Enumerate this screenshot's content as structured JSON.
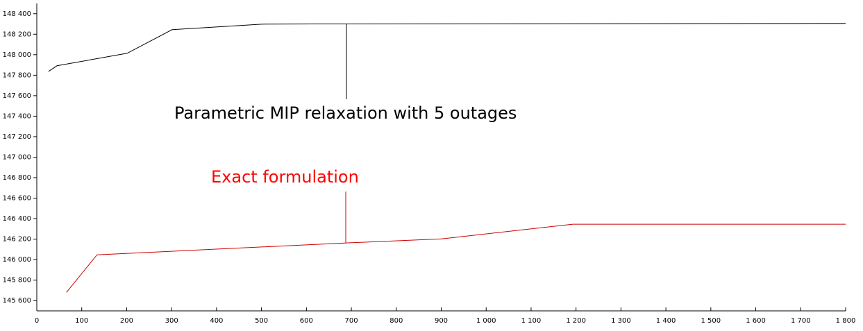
{
  "chart_data": {
    "type": "line",
    "annotations": [
      {
        "text": "Parametric MIP relaxation with 5 outages",
        "color": "#000000"
      },
      {
        "text": "Exact formulation",
        "color": "#ff0000"
      }
    ],
    "series": [
      {
        "color": "#000000",
        "x": [
          26,
          45,
          201,
          301,
          500,
          613,
          1800
        ],
        "values": [
          147837,
          147892,
          148014,
          148244,
          148298,
          148300,
          148305
        ]
      },
      {
        "color": "#cc0000",
        "x": [
          66,
          134,
          689,
          901,
          1193,
          1800
        ],
        "values": [
          145681,
          146047,
          146163,
          146203,
          146346,
          146346
        ]
      }
    ],
    "xlim": [
      0,
      1800
    ],
    "xticks": [
      0,
      100,
      200,
      300,
      400,
      500,
      600,
      700,
      800,
      900,
      {
        "value": 1000,
        "label": "1 000"
      },
      {
        "value": 1100,
        "label": "1 100"
      },
      {
        "value": 1200,
        "label": "1 200"
      },
      {
        "value": 1300,
        "label": "1 300"
      },
      {
        "value": 1400,
        "label": "1 400"
      },
      {
        "value": 1500,
        "label": "1 500"
      },
      {
        "value": 1600,
        "label": "1 600"
      },
      {
        "value": 1700,
        "label": "1 700"
      },
      {
        "value": 1800,
        "label": "1 800"
      }
    ],
    "ylim": [
      145500,
      148500
    ],
    "yticks": [
      {
        "value": 145600,
        "label": "145 600"
      },
      {
        "value": 145800,
        "label": "145 800"
      },
      {
        "value": 146000,
        "label": "146 000"
      },
      {
        "value": 146200,
        "label": "146 200"
      },
      {
        "value": 146400,
        "label": "146 400"
      },
      {
        "value": 146600,
        "label": "146 600"
      },
      {
        "value": 146800,
        "label": "146 800"
      },
      {
        "value": 147000,
        "label": "147 000"
      },
      {
        "value": 147200,
        "label": "147 200"
      },
      {
        "value": 147400,
        "label": "147 400"
      },
      {
        "value": 147600,
        "label": "147 600"
      },
      {
        "value": 147800,
        "label": "147 800"
      },
      {
        "value": 148000,
        "label": "148 000"
      },
      {
        "value": 148200,
        "label": "148 200"
      },
      {
        "value": 148400,
        "label": "148 400"
      }
    ]
  }
}
